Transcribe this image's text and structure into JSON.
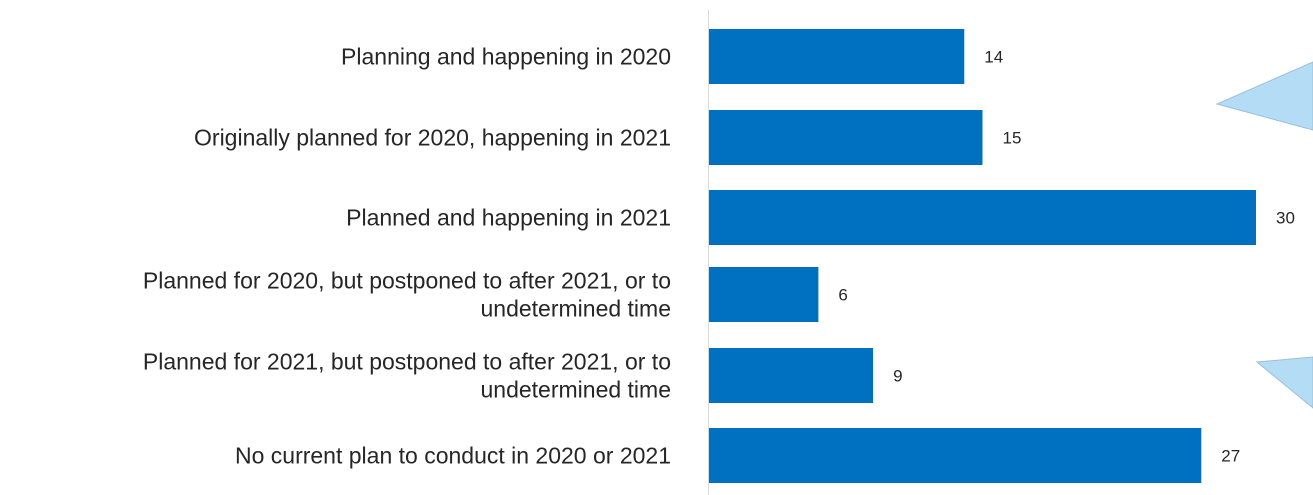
{
  "chart_data": {
    "type": "bar",
    "orientation": "horizontal",
    "title": "",
    "xlabel": "",
    "ylabel": "",
    "xlim": [
      0,
      30
    ],
    "grid": false,
    "legend": "none",
    "bar_color": "#0070c0",
    "callout_color": "#b4dcf5",
    "categories": [
      [
        "Planning and happening in 2020"
      ],
      [
        "Originally planned for 2020, happening in 2021"
      ],
      [
        "Planned and happening in 2021"
      ],
      [
        "Planned for 2020, but postponed to after 2021, or to",
        "undetermined time"
      ],
      [
        "Planned for 2021, but postponed to after 2021, or to",
        "undetermined time"
      ],
      [
        "No current plan to conduct in 2020 or 2021"
      ]
    ],
    "values": [
      14,
      15,
      30,
      6,
      9,
      27
    ],
    "data_labels": [
      "14",
      "15",
      "30",
      "6",
      "9",
      "27"
    ]
  }
}
